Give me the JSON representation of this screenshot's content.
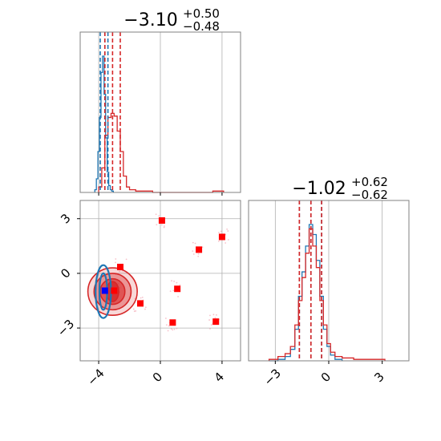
{
  "colors": {
    "series_a": "#1f77b4",
    "series_b": "#d62728",
    "marker_blue": "#0000ff",
    "marker_red": "#ff0000",
    "grid": "#b0b0b0",
    "frame": "#808080"
  },
  "chart_data": [
    {
      "type": "histogram",
      "panel": "top-left",
      "title_main": "−3.10",
      "title_sup": "+0.50",
      "title_sub": "−0.48",
      "xlim": [
        -5.2,
        5.2
      ],
      "xticks": [
        -4,
        0,
        4
      ],
      "grid": true,
      "show_tick_labels": false,
      "quantile_lines": [
        {
          "series": "A",
          "values": [
            -3.9,
            -3.6,
            -3.4
          ],
          "color": "#1f77b4"
        },
        {
          "series": "B",
          "values": [
            -3.6,
            -3.1,
            -2.6
          ],
          "color": "#d62728"
        }
      ],
      "series": [
        {
          "x": [
            -4.2,
            -4.1,
            -4.0,
            -3.9,
            -3.8,
            -3.7,
            -3.6,
            -3.5,
            -3.4,
            -3.3,
            -3.2,
            -3.1
          ],
          "y": [
            0.02,
            0.1,
            0.3,
            0.55,
            0.88,
            1.0,
            0.72,
            0.4,
            0.15,
            0.05,
            0.02,
            0.01
          ],
          "color": "#1f77b4"
        },
        {
          "x": [
            -3.9,
            -3.7,
            -3.5,
            -3.3,
            -3.1,
            -2.9,
            -2.7,
            -2.5,
            -2.3,
            -2.1,
            -1.9,
            -1.7,
            -1.5,
            -1.0,
            0.0,
            1.0,
            2.0,
            3.0,
            3.8,
            4.0
          ],
          "y": [
            0.04,
            0.18,
            0.42,
            0.55,
            0.58,
            0.56,
            0.45,
            0.3,
            0.12,
            0.04,
            0.02,
            0.02,
            0.01,
            0.01,
            0.0,
            0.0,
            0.0,
            0.0,
            0.01,
            0.01
          ],
          "color": "#d62728"
        }
      ]
    },
    {
      "type": "histogram",
      "panel": "bottom-right",
      "title_main": "−1.02",
      "title_sup": "+0.62",
      "title_sub": "−0.62",
      "xlim": [
        -4.5,
        4.5
      ],
      "xticks": [
        -3,
        0,
        3
      ],
      "xtick_labels": [
        "−3",
        "0",
        "3"
      ],
      "grid": true,
      "quantile_lines": [
        {
          "series": "A",
          "values": [
            -1.65,
            -1.0,
            -0.4
          ],
          "color": "#1f77b4"
        },
        {
          "series": "B",
          "values": [
            -1.65,
            -1.0,
            -0.4
          ],
          "color": "#d62728"
        }
      ],
      "series": [
        {
          "x": [
            -3.1,
            -2.6,
            -2.3,
            -2.0,
            -1.8,
            -1.6,
            -1.4,
            -1.2,
            -1.0,
            -0.8,
            -0.6,
            -0.4,
            -0.2,
            0.0,
            0.2,
            0.5
          ],
          "y": [
            0.0,
            0.01,
            0.03,
            0.08,
            0.22,
            0.45,
            0.62,
            0.8,
            0.95,
            0.88,
            0.7,
            0.45,
            0.22,
            0.1,
            0.04,
            0.01
          ],
          "color": "#1f77b4"
        },
        {
          "x": [
            -3.1,
            -2.6,
            -2.3,
            -2.0,
            -1.8,
            -1.6,
            -1.4,
            -1.2,
            -1.0,
            -0.8,
            -0.6,
            -0.4,
            -0.2,
            0.0,
            0.2,
            0.5,
            1.0,
            1.8,
            2.9
          ],
          "y": [
            0.01,
            0.03,
            0.05,
            0.1,
            0.25,
            0.42,
            0.58,
            0.75,
            0.92,
            0.8,
            0.65,
            0.42,
            0.25,
            0.12,
            0.06,
            0.03,
            0.02,
            0.01,
            0.01
          ],
          "color": "#d62728"
        }
      ]
    },
    {
      "type": "scatter",
      "panel": "bottom-left",
      "xlim": [
        -5.2,
        5.2
      ],
      "ylim": [
        -4.8,
        4.0
      ],
      "xticks": [
        -4,
        0,
        4
      ],
      "xtick_labels": [
        "−4",
        "0",
        "4"
      ],
      "yticks": [
        -3,
        0,
        3
      ],
      "ytick_labels": [
        "−3",
        "0",
        "3"
      ],
      "grid": true,
      "contours": [
        {
          "color": "#d62728",
          "cx": -3.1,
          "cy": -1.0,
          "levels": [
            [
              1.6,
              1.3
            ],
            [
              1.2,
              1.0
            ],
            [
              0.8,
              0.7
            ],
            [
              0.4,
              0.55
            ]
          ]
        },
        {
          "color": "#1f77b4",
          "cx": -3.7,
          "cy": -1.0,
          "levels": [
            [
              0.5,
              1.45
            ],
            [
              0.25,
              1.0
            ]
          ]
        }
      ],
      "markers_red": [
        [
          0.1,
          2.9
        ],
        [
          -2.6,
          0.35
        ],
        [
          2.5,
          1.3
        ],
        [
          4.0,
          2.0
        ],
        [
          1.1,
          -0.85
        ],
        [
          -1.3,
          -1.65
        ],
        [
          0.8,
          -2.7
        ],
        [
          3.6,
          -2.65
        ],
        [
          -3.0,
          -0.95
        ]
      ],
      "markers_blue": [
        [
          -3.6,
          -0.95
        ]
      ]
    }
  ]
}
